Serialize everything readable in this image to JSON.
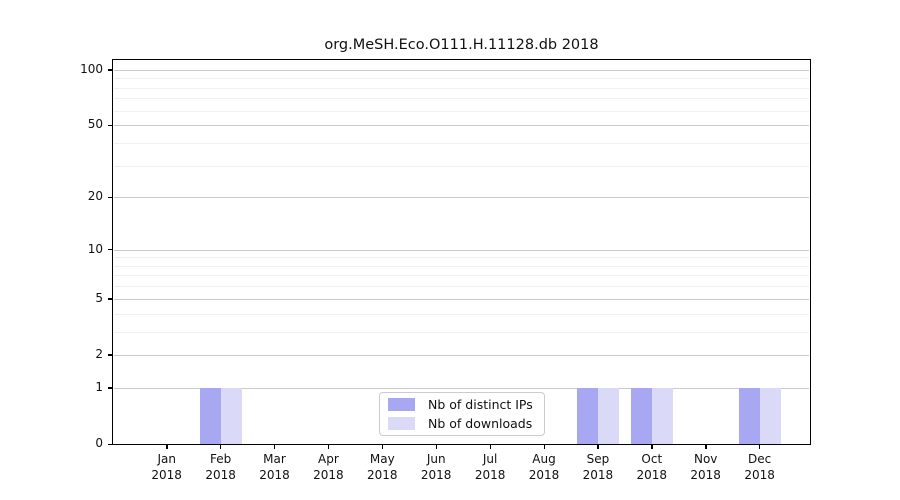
{
  "title": "org.MeSH.Eco.O111.H.11128.db 2018",
  "chart_data": {
    "type": "bar",
    "title": "org.MeSH.Eco.O111.H.11128.db 2018",
    "categories": [
      "Jan 2018",
      "Feb 2018",
      "Mar 2018",
      "Apr 2018",
      "May 2018",
      "Jun 2018",
      "Jul 2018",
      "Aug 2018",
      "Sep 2018",
      "Oct 2018",
      "Nov 2018",
      "Dec 2018"
    ],
    "x_tick_line1": [
      "Jan",
      "Feb",
      "Mar",
      "Apr",
      "May",
      "Jun",
      "Jul",
      "Aug",
      "Sep",
      "Oct",
      "Nov",
      "Dec"
    ],
    "x_tick_line2": "2018",
    "series": [
      {
        "name": "Nb of distinct IPs",
        "color": "#a8a8f2",
        "values": [
          0,
          1,
          0,
          0,
          0,
          0,
          0,
          0,
          1,
          1,
          0,
          1
        ]
      },
      {
        "name": "Nb of downloads",
        "color": "#dadaf8",
        "values": [
          0,
          1,
          0,
          0,
          0,
          0,
          0,
          0,
          1,
          1,
          0,
          1
        ]
      }
    ],
    "yscale": "log1p",
    "ylim": [
      0,
      113
    ],
    "y_major_ticks": [
      0,
      1,
      2,
      5,
      10,
      20,
      50,
      100
    ],
    "y_minor_gridlines": [
      3,
      4,
      6,
      7,
      8,
      9,
      30,
      40,
      60,
      70,
      80,
      90
    ],
    "grid": "horizontal",
    "legend_position": "lower center"
  },
  "colors": {
    "grid_major": "#cbcbcb",
    "grid_minor": "#f0f0f0",
    "axis": "#000000",
    "text": "#111111",
    "legend_border": "#cccccc",
    "background": "#ffffff"
  }
}
